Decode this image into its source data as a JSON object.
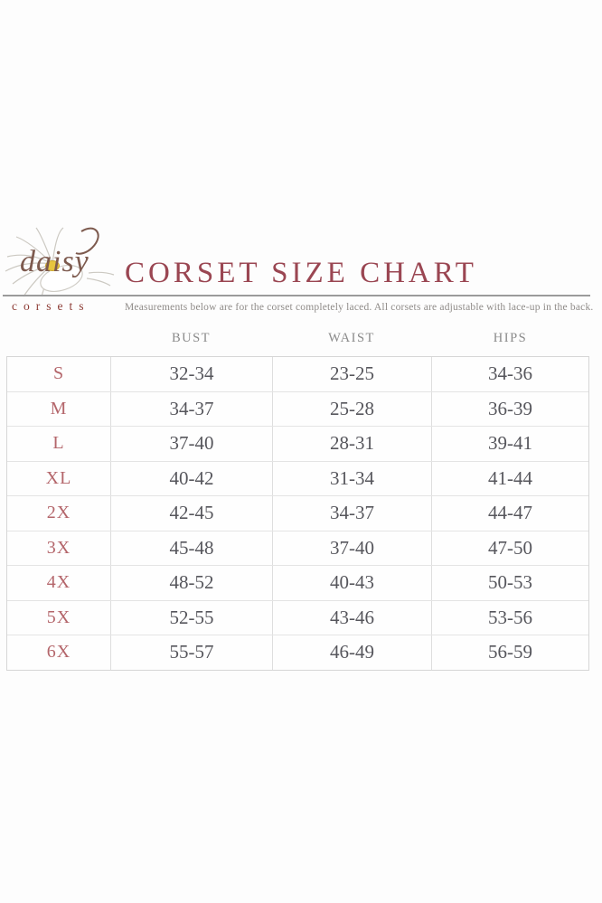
{
  "brand": {
    "logo_script": "daisy",
    "logo_sub": "corsets"
  },
  "header": {
    "title": "CORSET SIZE CHART",
    "subtitle": "Measurements below are for the corset completely laced. All corsets are adjustable with lace-up in the back."
  },
  "colors": {
    "title": "#9a4652",
    "brand_text": "#8c3a33",
    "size_label": "#b4666b",
    "value_text": "#56565c",
    "header_text": "#8a8a8a",
    "rule": "#9b9b9b",
    "grid_line": "#dedede",
    "daisy_center": "#e7c53e"
  },
  "chart_data": {
    "type": "table",
    "title": "CORSET SIZE CHART",
    "headers": [
      "BUST",
      "WAIST",
      "HIPS"
    ],
    "rows": [
      {
        "size": "S",
        "bust": "32-34",
        "waist": "23-25",
        "hips": "34-36"
      },
      {
        "size": "M",
        "bust": "34-37",
        "waist": "25-28",
        "hips": "36-39"
      },
      {
        "size": "L",
        "bust": "37-40",
        "waist": "28-31",
        "hips": "39-41"
      },
      {
        "size": "XL",
        "bust": "40-42",
        "waist": "31-34",
        "hips": "41-44"
      },
      {
        "size": "2X",
        "bust": "42-45",
        "waist": "34-37",
        "hips": "44-47"
      },
      {
        "size": "3X",
        "bust": "45-48",
        "waist": "37-40",
        "hips": "47-50"
      },
      {
        "size": "4X",
        "bust": "48-52",
        "waist": "40-43",
        "hips": "50-53"
      },
      {
        "size": "5X",
        "bust": "52-55",
        "waist": "43-46",
        "hips": "53-56"
      },
      {
        "size": "6X",
        "bust": "55-57",
        "waist": "46-49",
        "hips": "56-59"
      }
    ]
  }
}
